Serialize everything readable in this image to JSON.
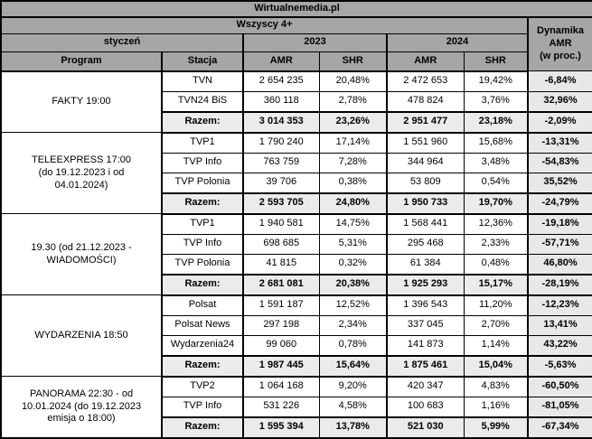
{
  "page": {
    "title": "Wirtualnemedia.pl"
  },
  "header": {
    "audience": "Wszyscy 4+",
    "month": "styczeń",
    "year_2023": "2023",
    "year_2024": "2024",
    "dynamics": "Dynamika\nAMR\n(w proc.)",
    "col_program": "Program",
    "col_station": "Stacja",
    "col_amr": "AMR",
    "col_shr": "SHR"
  },
  "colors": {
    "header_bg": "#a6a6a6",
    "total_row_bg": "#ebebeb",
    "dynamics_col_bg": "#e8e8e8",
    "border": "#000000"
  },
  "chart_data": {
    "type": "table",
    "title": "Wirtualnemedia.pl",
    "subtitle": "Wszyscy 4+",
    "period": "styczeń",
    "columns": [
      "Program",
      "Stacja",
      "AMR 2023",
      "SHR 2023",
      "AMR 2024",
      "SHR 2024",
      "Dynamika AMR (w proc.)"
    ],
    "groups": [
      {
        "program": "FAKTY 19:00",
        "rows": [
          {
            "station": "TVN",
            "amr_2023": "2 654 235",
            "shr_2023": "20,48%",
            "amr_2024": "2 472 653",
            "shr_2024": "19,42%",
            "dynamics": "-6,84%"
          },
          {
            "station": "TVN24 BiS",
            "amr_2023": "360 118",
            "shr_2023": "2,78%",
            "amr_2024": "478 824",
            "shr_2024": "3,76%",
            "dynamics": "32,96%"
          }
        ],
        "total": {
          "station": "Razem:",
          "amr_2023": "3 014 353",
          "shr_2023": "23,26%",
          "amr_2024": "2 951 477",
          "shr_2024": "23,18%",
          "dynamics": "-2,09%"
        }
      },
      {
        "program": "TELEEXPRESS 17:00\n(do 19.12.2023 i od\n04.01.2024)",
        "rows": [
          {
            "station": "TVP1",
            "amr_2023": "1 790 240",
            "shr_2023": "17,14%",
            "amr_2024": "1 551 960",
            "shr_2024": "15,68%",
            "dynamics": "-13,31%"
          },
          {
            "station": "TVP Info",
            "amr_2023": "763 759",
            "shr_2023": "7,28%",
            "amr_2024": "344 964",
            "shr_2024": "3,48%",
            "dynamics": "-54,83%"
          },
          {
            "station": "TVP Polonia",
            "amr_2023": "39 706",
            "shr_2023": "0,38%",
            "amr_2024": "53 809",
            "shr_2024": "0,54%",
            "dynamics": "35,52%"
          }
        ],
        "total": {
          "station": "Razem:",
          "amr_2023": "2 593 705",
          "shr_2023": "24,80%",
          "amr_2024": "1 950 733",
          "shr_2024": "19,70%",
          "dynamics": "-24,79%"
        }
      },
      {
        "program": "19.30 (od 21.12.2023 -\nWIADOMOŚCI)",
        "rows": [
          {
            "station": "TVP1",
            "amr_2023": "1 940 581",
            "shr_2023": "14,75%",
            "amr_2024": "1 568 441",
            "shr_2024": "12,36%",
            "dynamics": "-19,18%"
          },
          {
            "station": "TVP Info",
            "amr_2023": "698 685",
            "shr_2023": "5,31%",
            "amr_2024": "295 468",
            "shr_2024": "2,33%",
            "dynamics": "-57,71%"
          },
          {
            "station": "TVP Polonia",
            "amr_2023": "41 815",
            "shr_2023": "0,32%",
            "amr_2024": "61 384",
            "shr_2024": "0,48%",
            "dynamics": "46,80%"
          }
        ],
        "total": {
          "station": "Razem:",
          "amr_2023": "2 681 081",
          "shr_2023": "20,38%",
          "amr_2024": "1 925 293",
          "shr_2024": "15,17%",
          "dynamics": "-28,19%"
        }
      },
      {
        "program": "WYDARZENIA 18:50",
        "rows": [
          {
            "station": "Polsat",
            "amr_2023": "1 591 187",
            "shr_2023": "12,52%",
            "amr_2024": "1 396 543",
            "shr_2024": "11,20%",
            "dynamics": "-12,23%"
          },
          {
            "station": "Polsat News",
            "amr_2023": "297 198",
            "shr_2023": "2,34%",
            "amr_2024": "337 045",
            "shr_2024": "2,70%",
            "dynamics": "13,41%"
          },
          {
            "station": "Wydarzenia24",
            "amr_2023": "99 060",
            "shr_2023": "0,78%",
            "amr_2024": "141 873",
            "shr_2024": "1,14%",
            "dynamics": "43,22%"
          }
        ],
        "total": {
          "station": "Razem:",
          "amr_2023": "1 987 445",
          "shr_2023": "15,64%",
          "amr_2024": "1 875 461",
          "shr_2024": "15,04%",
          "dynamics": "-5,63%"
        }
      },
      {
        "program": "PANORAMA 22:30 - od\n10.01.2024 (do 19.12.2023\nemisja o 18:00)",
        "rows": [
          {
            "station": "TVP2",
            "amr_2023": "1 064 168",
            "shr_2023": "9,20%",
            "amr_2024": "420 347",
            "shr_2024": "4,83%",
            "dynamics": "-60,50%"
          },
          {
            "station": "TVP Info",
            "amr_2023": "531 226",
            "shr_2023": "4,58%",
            "amr_2024": "100 683",
            "shr_2024": "1,16%",
            "dynamics": "-81,05%"
          }
        ],
        "total": {
          "station": "Razem:",
          "amr_2023": "1 595 394",
          "shr_2023": "13,78%",
          "amr_2024": "521 030",
          "shr_2024": "5,99%",
          "dynamics": "-67,34%"
        }
      }
    ]
  }
}
